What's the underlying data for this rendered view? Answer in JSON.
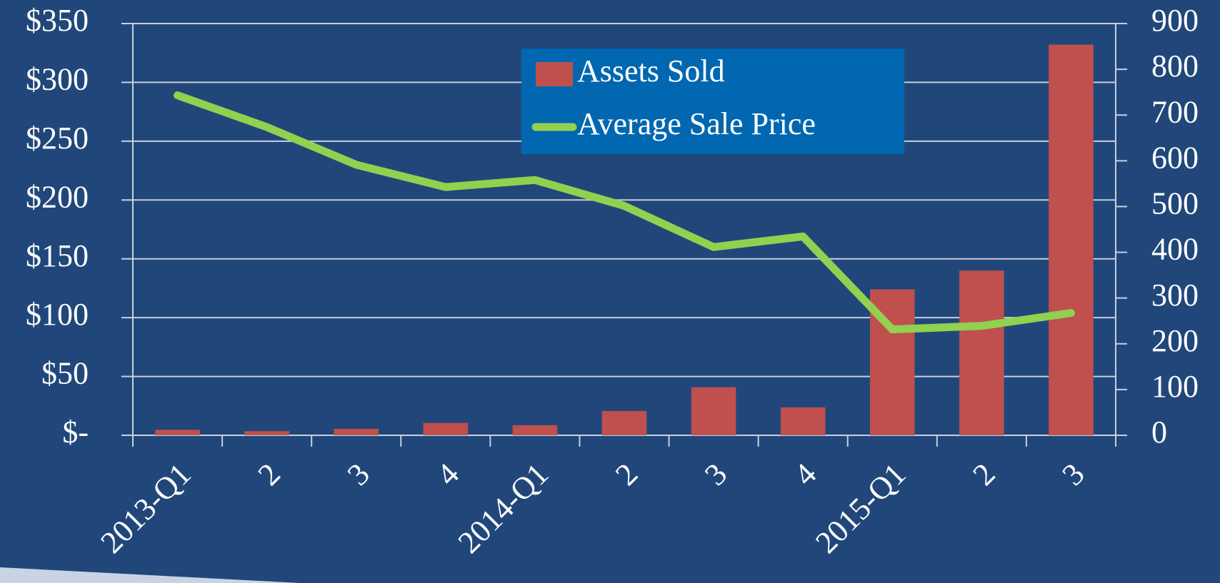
{
  "chart_data": {
    "type": "bar-line",
    "categories": [
      "2013-Q1",
      "2",
      "3",
      "4",
      "2014-Q1",
      "2",
      "3",
      "4",
      "2015-Q1",
      "2",
      "3"
    ],
    "series": [
      {
        "name": "Assets Sold",
        "type": "bar",
        "axis": "y2",
        "color": "#c0504d",
        "values": [
          12,
          9,
          14,
          27,
          22,
          53,
          105,
          61,
          319,
          360,
          854
        ]
      },
      {
        "name": "Average Sale Price",
        "type": "line",
        "axis": "y",
        "color": "#92d050",
        "values": [
          289,
          262,
          230,
          211,
          217,
          195,
          160,
          169,
          90,
          93,
          104
        ]
      }
    ],
    "ylim": [
      0,
      350
    ],
    "yticks": [
      {
        "value": 0,
        "label": "$-"
      },
      {
        "value": 50,
        "label": "$50"
      },
      {
        "value": 100,
        "label": "$100"
      },
      {
        "value": 150,
        "label": "$150"
      },
      {
        "value": 200,
        "label": "$200"
      },
      {
        "value": 250,
        "label": "$250"
      },
      {
        "value": 300,
        "label": "$300"
      },
      {
        "value": 350,
        "label": "$350"
      }
    ],
    "y2lim": [
      0,
      900
    ],
    "y2ticks": [
      0,
      100,
      200,
      300,
      400,
      500,
      600,
      700,
      800,
      900
    ],
    "grid": true,
    "legend": "top"
  }
}
